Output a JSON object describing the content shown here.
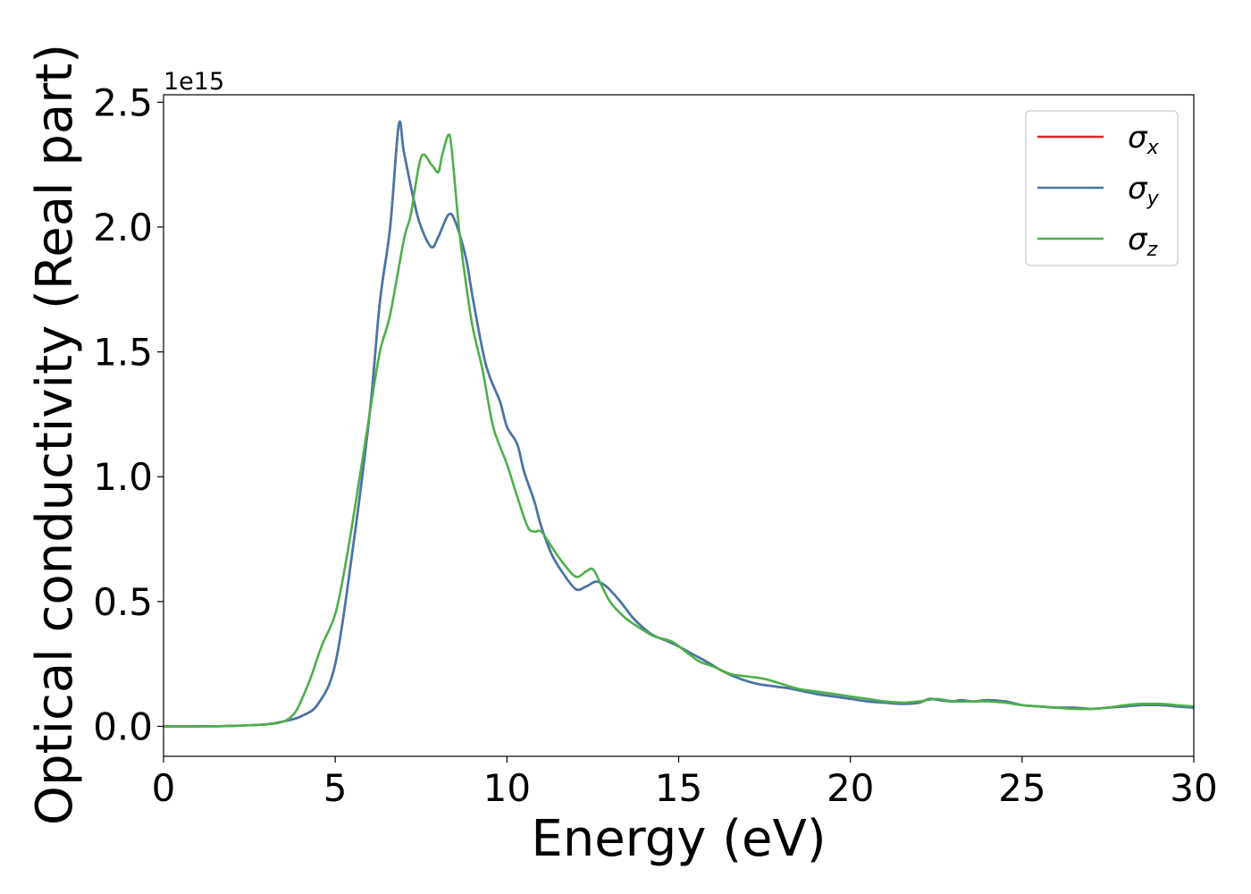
{
  "chart_data": {
    "type": "line",
    "xlabel": "Energy (eV)",
    "ylabel": "Optical conductivity (Real part)",
    "y_offset_label": "1e15",
    "xlim": [
      0,
      30
    ],
    "ylim": [
      -0.12,
      2.53
    ],
    "x_ticks": [
      0,
      5,
      10,
      15,
      20,
      25,
      30
    ],
    "x_tick_labels": [
      "0",
      "5",
      "10",
      "15",
      "20",
      "25",
      "30"
    ],
    "y_ticks": [
      0.0,
      0.5,
      1.0,
      1.5,
      2.0,
      2.5
    ],
    "y_tick_labels": [
      "0.0",
      "0.5",
      "1.0",
      "1.5",
      "2.0",
      "2.5"
    ],
    "grid": false,
    "legend_position": "top-right",
    "series": [
      {
        "name": "σx",
        "symbol": "σ",
        "subscript": "x",
        "color": "#d62728",
        "x": [
          0,
          1,
          2,
          3,
          3.5,
          4,
          4.5,
          5,
          5.5,
          6,
          6.3,
          6.6,
          6.85,
          7.0,
          7.3,
          7.5,
          7.8,
          8.0,
          8.3,
          8.5,
          8.8,
          9.0,
          9.3,
          9.5,
          9.8,
          10.0,
          10.3,
          10.5,
          10.8,
          11.0,
          11.3,
          11.6,
          12.0,
          12.3,
          12.6,
          12.9,
          13.3,
          13.7,
          14.2,
          14.7,
          15.0,
          15.4,
          15.8,
          16.3,
          16.8,
          17.3,
          17.8,
          18.3,
          19.0,
          19.5,
          20.0,
          20.5,
          21.0,
          21.5,
          22.0,
          22.3,
          22.6,
          23.0,
          23.2,
          23.6,
          24.0,
          24.5,
          25.0,
          25.5,
          26.0,
          26.5,
          27.0,
          27.5,
          28.0,
          28.5,
          29.0,
          29.5,
          30.0
        ],
        "y": [
          0.0,
          0.0,
          0.002,
          0.008,
          0.02,
          0.04,
          0.09,
          0.25,
          0.7,
          1.25,
          1.7,
          2.0,
          2.41,
          2.3,
          2.1,
          2.0,
          1.92,
          1.96,
          2.05,
          2.02,
          1.88,
          1.72,
          1.5,
          1.4,
          1.3,
          1.2,
          1.13,
          1.02,
          0.9,
          0.8,
          0.69,
          0.62,
          0.55,
          0.56,
          0.58,
          0.56,
          0.5,
          0.43,
          0.37,
          0.34,
          0.32,
          0.29,
          0.26,
          0.22,
          0.19,
          0.17,
          0.16,
          0.15,
          0.13,
          0.12,
          0.11,
          0.1,
          0.095,
          0.09,
          0.095,
          0.11,
          0.105,
          0.1,
          0.105,
          0.1,
          0.105,
          0.1,
          0.085,
          0.08,
          0.075,
          0.075,
          0.07,
          0.075,
          0.08,
          0.085,
          0.085,
          0.08,
          0.075
        ]
      },
      {
        "name": "σy",
        "symbol": "σ",
        "subscript": "y",
        "color": "#4477aa",
        "x": [
          0,
          1,
          2,
          3,
          3.5,
          4,
          4.5,
          5,
          5.5,
          6,
          6.3,
          6.6,
          6.85,
          7.0,
          7.3,
          7.5,
          7.8,
          8.0,
          8.3,
          8.5,
          8.8,
          9.0,
          9.3,
          9.5,
          9.8,
          10.0,
          10.3,
          10.5,
          10.8,
          11.0,
          11.3,
          11.6,
          12.0,
          12.3,
          12.6,
          12.9,
          13.3,
          13.7,
          14.2,
          14.7,
          15.0,
          15.4,
          15.8,
          16.3,
          16.8,
          17.3,
          17.8,
          18.3,
          19.0,
          19.5,
          20.0,
          20.5,
          21.0,
          21.5,
          22.0,
          22.3,
          22.6,
          23.0,
          23.2,
          23.6,
          24.0,
          24.5,
          25.0,
          25.5,
          26.0,
          26.5,
          27.0,
          27.5,
          28.0,
          28.5,
          29.0,
          29.5,
          30.0
        ],
        "y": [
          0.0,
          0.0,
          0.002,
          0.008,
          0.02,
          0.04,
          0.09,
          0.25,
          0.7,
          1.25,
          1.7,
          2.0,
          2.41,
          2.3,
          2.1,
          2.0,
          1.92,
          1.96,
          2.05,
          2.02,
          1.88,
          1.72,
          1.5,
          1.4,
          1.3,
          1.2,
          1.13,
          1.02,
          0.9,
          0.8,
          0.69,
          0.62,
          0.55,
          0.56,
          0.58,
          0.56,
          0.5,
          0.43,
          0.37,
          0.34,
          0.32,
          0.29,
          0.26,
          0.22,
          0.19,
          0.17,
          0.16,
          0.15,
          0.13,
          0.12,
          0.11,
          0.1,
          0.095,
          0.09,
          0.095,
          0.11,
          0.105,
          0.1,
          0.105,
          0.1,
          0.105,
          0.1,
          0.085,
          0.08,
          0.075,
          0.075,
          0.07,
          0.075,
          0.08,
          0.085,
          0.085,
          0.08,
          0.075
        ]
      },
      {
        "name": "σz",
        "symbol": "σ",
        "subscript": "z",
        "color": "#4daf4a",
        "x": [
          0,
          1,
          2,
          3,
          3.5,
          3.8,
          4.0,
          4.3,
          4.6,
          5.0,
          5.3,
          5.6,
          6.0,
          6.3,
          6.6,
          7.0,
          7.2,
          7.5,
          7.8,
          8.0,
          8.1,
          8.3,
          8.4,
          8.6,
          8.8,
          9.0,
          9.3,
          9.6,
          10.0,
          10.3,
          10.6,
          10.8,
          11.0,
          11.3,
          11.6,
          12.0,
          12.3,
          12.5,
          12.7,
          13.0,
          13.4,
          13.8,
          14.3,
          14.8,
          15.2,
          15.6,
          16.0,
          16.5,
          17.0,
          17.5,
          18.0,
          18.5,
          19.0,
          19.5,
          20.0,
          20.5,
          21.0,
          21.5,
          22.0,
          22.5,
          23.0,
          23.5,
          24.0,
          24.5,
          25.0,
          25.5,
          26.0,
          26.5,
          27.0,
          27.5,
          28.0,
          28.5,
          29.0,
          29.5,
          30.0
        ],
        "y": [
          0.0,
          0.0,
          0.002,
          0.008,
          0.02,
          0.05,
          0.1,
          0.2,
          0.32,
          0.45,
          0.65,
          0.9,
          1.25,
          1.5,
          1.65,
          1.95,
          2.05,
          2.28,
          2.25,
          2.22,
          2.28,
          2.37,
          2.3,
          2.0,
          1.78,
          1.6,
          1.42,
          1.2,
          1.05,
          0.92,
          0.8,
          0.78,
          0.78,
          0.72,
          0.66,
          0.6,
          0.62,
          0.63,
          0.58,
          0.5,
          0.44,
          0.4,
          0.36,
          0.34,
          0.3,
          0.26,
          0.24,
          0.21,
          0.2,
          0.19,
          0.17,
          0.15,
          0.14,
          0.13,
          0.12,
          0.11,
          0.1,
          0.095,
          0.1,
          0.11,
          0.1,
          0.1,
          0.1,
          0.095,
          0.085,
          0.08,
          0.075,
          0.07,
          0.07,
          0.075,
          0.085,
          0.09,
          0.09,
          0.085,
          0.08
        ]
      }
    ]
  }
}
